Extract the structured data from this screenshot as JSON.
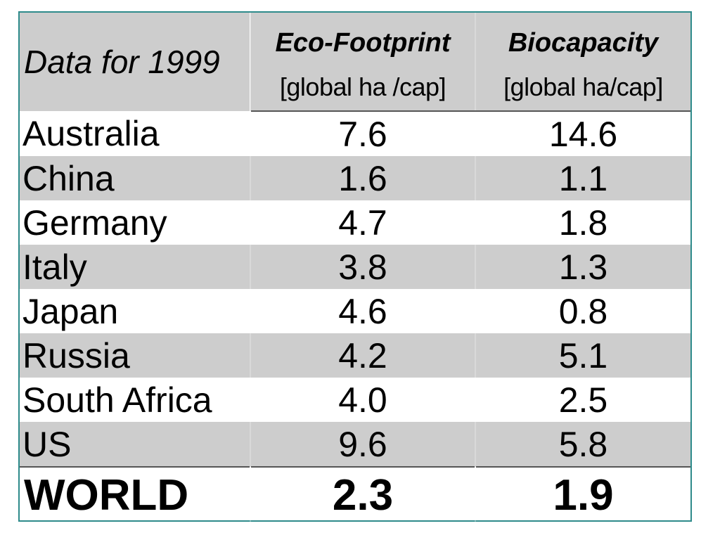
{
  "table": {
    "title": "Data for 1999",
    "columns": [
      {
        "label": "Eco-Footprint",
        "unit": "[global ha /cap]"
      },
      {
        "label": "Biocapacity",
        "unit": "[global ha/cap]"
      }
    ],
    "rows": [
      {
        "country": "Australia",
        "eco_footprint": "7.6",
        "biocapacity": "14.6"
      },
      {
        "country": "China",
        "eco_footprint": "1.6",
        "biocapacity": "1.1"
      },
      {
        "country": "Germany",
        "eco_footprint": "4.7",
        "biocapacity": "1.8"
      },
      {
        "country": "Italy",
        "eco_footprint": "3.8",
        "biocapacity": "1.3"
      },
      {
        "country": "Japan",
        "eco_footprint": "4.6",
        "biocapacity": "0.8"
      },
      {
        "country": "Russia",
        "eco_footprint": "4.2",
        "biocapacity": "5.1"
      },
      {
        "country": "South Africa",
        "eco_footprint": "4.0",
        "biocapacity": "2.5"
      },
      {
        "country": "US",
        "eco_footprint": "9.6",
        "biocapacity": "5.8"
      }
    ],
    "total": {
      "country": "WORLD",
      "eco_footprint": "2.3",
      "biocapacity": "1.9"
    }
  },
  "colors": {
    "border": "#2e8b8b",
    "band": "#cdcdcd"
  }
}
